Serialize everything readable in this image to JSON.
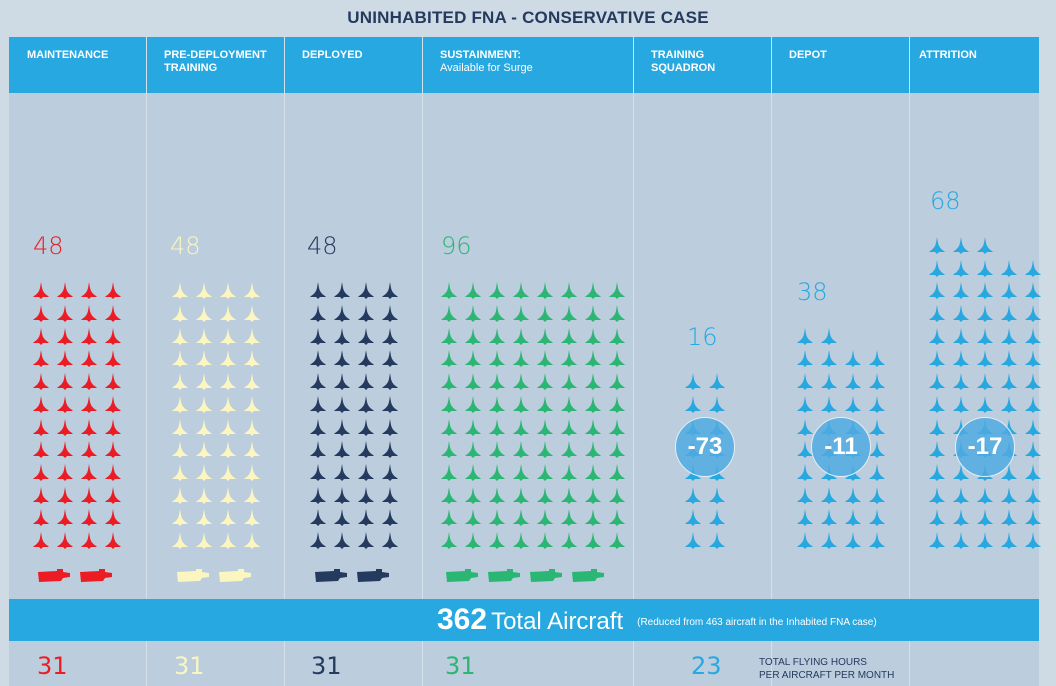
{
  "title": "UNINHABITED FNA - CONSERVATIVE CASE",
  "colors": {
    "header_bg": "#27a8e0",
    "panel_bg": "#bccddd",
    "page_bg": "#cfdbe4",
    "maintenance": "#ec1c24",
    "pre_deployment": "#fbf5bf",
    "deployed": "#243a5e",
    "sustainment": "#2bb673",
    "blue": "#27a8e0"
  },
  "chart_data": {
    "type": "table",
    "title": "UNINHABITED FNA - CONSERVATIVE CASE",
    "categories": [
      {
        "label": "MAINTENANCE",
        "sublabel": "",
        "aircraft": 48,
        "ships": 2,
        "flying_hours": 31,
        "reduction": null,
        "color": "#ec1c24"
      },
      {
        "label": "PRE-DEPLOYMENT TRAINING",
        "sublabel": "",
        "aircraft": 48,
        "ships": 2,
        "flying_hours": 31,
        "reduction": null,
        "color": "#fbf5bf"
      },
      {
        "label": "DEPLOYED",
        "sublabel": "",
        "aircraft": 48,
        "ships": 2,
        "flying_hours": 31,
        "reduction": null,
        "color": "#243a5e"
      },
      {
        "label": "SUSTAINMENT:",
        "sublabel": "Available for Surge",
        "aircraft": 96,
        "ships": 4,
        "flying_hours": 31,
        "reduction": null,
        "color": "#2bb673"
      },
      {
        "label": "TRAINING SQUADRON",
        "sublabel": "",
        "aircraft": 16,
        "ships": 0,
        "flying_hours": 23,
        "reduction": -73,
        "color": "#27a8e0"
      },
      {
        "label": "DEPOT",
        "sublabel": "",
        "aircraft": 38,
        "ships": 0,
        "flying_hours": null,
        "reduction": -11,
        "color": "#27a8e0"
      },
      {
        "label": "ATTRITION",
        "sublabel": "",
        "aircraft": 68,
        "ships": 0,
        "flying_hours": null,
        "reduction": -17,
        "color": "#27a8e0"
      }
    ],
    "total": {
      "value": "362",
      "label": "Total Aircraft",
      "note": "(Reduced from 463 aircraft in the Inhabited FNA case)"
    },
    "flying_hours_label": [
      "TOTAL FLYING HOURS",
      "PER AIRCRAFT PER MONTH"
    ]
  }
}
